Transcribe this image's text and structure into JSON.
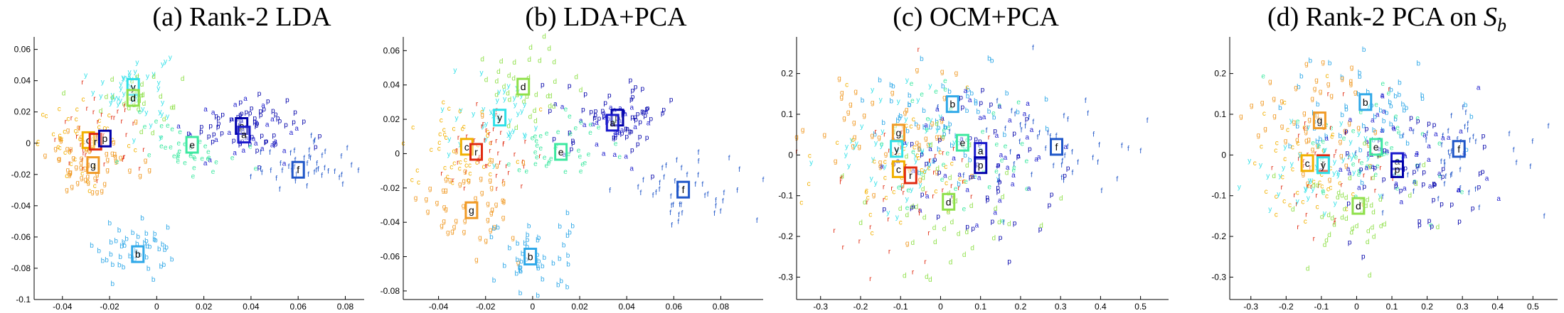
{
  "colors": {
    "a": "#1a1acc",
    "b": "#2fa8e8",
    "c": "#f2b000",
    "d": "#8fe04a",
    "e": "#3de8a0",
    "f": "#1f56c8",
    "g": "#f09a26",
    "p": "#0000aa",
    "r": "#e02a10",
    "y": "#30e0e8"
  },
  "chart_data": [
    {
      "type": "scatter",
      "title": "(a) Rank-2 LDA",
      "xlim": [
        -0.052,
        0.088
      ],
      "ylim": [
        -0.1,
        0.068
      ],
      "xticks": [
        -0.04,
        -0.02,
        0,
        0.02,
        0.04,
        0.06,
        0.08
      ],
      "xtick_labels": [
        "-0.04",
        "-0.02",
        "0",
        "0.02",
        "0.04",
        "0.06",
        "0.08"
      ],
      "yticks": [
        -0.1,
        -0.08,
        -0.06,
        -0.04,
        -0.02,
        0,
        0.02,
        0.04,
        0.06
      ],
      "ytick_labels": [
        "-0.1",
        "-0.08",
        "-0.06",
        "-0.04",
        "-0.02",
        "0",
        "0.02",
        "0.04",
        "0.06"
      ],
      "grid": false,
      "centroids": [
        {
          "label": "y",
          "x": -0.01,
          "y": 0.036
        },
        {
          "label": "d",
          "x": -0.01,
          "y": 0.029
        },
        {
          "label": "p",
          "x": 0.036,
          "y": 0.011
        },
        {
          "label": "a",
          "x": 0.037,
          "y": 0.0055
        },
        {
          "label": "c",
          "x": -0.029,
          "y": 0.002
        },
        {
          "label": "r",
          "x": -0.026,
          "y": 0.001
        },
        {
          "label": "p",
          "x": -0.022,
          "y": 0.003
        },
        {
          "label": "e",
          "x": 0.015,
          "y": -0.001
        },
        {
          "label": "g",
          "x": -0.027,
          "y": -0.014
        },
        {
          "label": "f",
          "x": 0.06,
          "y": -0.017
        },
        {
          "label": "b",
          "x": -0.008,
          "y": -0.071
        }
      ],
      "scatter_points": [
        {
          "label": "y",
          "x": -0.01,
          "y": 0.036,
          "sx": 0.008,
          "sy": 0.012,
          "n": 45
        },
        {
          "label": "d",
          "x": -0.008,
          "y": 0.028,
          "sx": 0.009,
          "sy": 0.01,
          "n": 30
        },
        {
          "label": "p",
          "x": 0.038,
          "y": 0.012,
          "sx": 0.012,
          "sy": 0.009,
          "n": 60
        },
        {
          "label": "a",
          "x": 0.036,
          "y": 0.006,
          "sx": 0.013,
          "sy": 0.01,
          "n": 30
        },
        {
          "label": "c",
          "x": -0.03,
          "y": 0.0,
          "sx": 0.01,
          "sy": 0.012,
          "n": 45
        },
        {
          "label": "r",
          "x": -0.026,
          "y": 0.003,
          "sx": 0.01,
          "sy": 0.012,
          "n": 40
        },
        {
          "label": "g",
          "x": -0.026,
          "y": -0.012,
          "sx": 0.01,
          "sy": 0.012,
          "n": 55
        },
        {
          "label": "e",
          "x": 0.012,
          "y": -0.002,
          "sx": 0.01,
          "sy": 0.008,
          "n": 40
        },
        {
          "label": "f",
          "x": 0.062,
          "y": -0.016,
          "sx": 0.011,
          "sy": 0.008,
          "n": 45
        },
        {
          "label": "b",
          "x": -0.008,
          "y": -0.07,
          "sx": 0.01,
          "sy": 0.009,
          "n": 45
        }
      ]
    },
    {
      "type": "scatter",
      "title": "(b) LDA+PCA",
      "xlim": [
        -0.055,
        0.098
      ],
      "ylim": [
        -0.085,
        0.068
      ],
      "xticks": [
        -0.04,
        -0.02,
        0,
        0.02,
        0.04,
        0.06,
        0.08
      ],
      "xtick_labels": [
        "-0.04",
        "-0.02",
        "0",
        "0.02",
        "0.04",
        "0.06",
        "0.08"
      ],
      "yticks": [
        -0.08,
        -0.06,
        -0.04,
        -0.02,
        0,
        0.02,
        0.04,
        0.06
      ],
      "ytick_labels": [
        "-0.08",
        "-0.06",
        "-0.04",
        "-0.02",
        "0",
        "0.02",
        "0.04",
        "0.06"
      ],
      "grid": false,
      "centroids": [
        {
          "label": "d",
          "x": -0.004,
          "y": 0.039
        },
        {
          "label": "y",
          "x": -0.014,
          "y": 0.021
        },
        {
          "label": "p",
          "x": 0.036,
          "y": 0.021
        },
        {
          "label": "a",
          "x": 0.034,
          "y": 0.018
        },
        {
          "label": "c",
          "x": -0.028,
          "y": 0.004
        },
        {
          "label": "r",
          "x": -0.024,
          "y": 0.001
        },
        {
          "label": "e",
          "x": 0.012,
          "y": 0.001
        },
        {
          "label": "g",
          "x": -0.026,
          "y": -0.033
        },
        {
          "label": "f",
          "x": 0.064,
          "y": -0.021
        },
        {
          "label": "b",
          "x": -0.001,
          "y": -0.06
        }
      ],
      "scatter_points": [
        {
          "label": "d",
          "x": -0.002,
          "y": 0.04,
          "sx": 0.012,
          "sy": 0.012,
          "n": 35
        },
        {
          "label": "y",
          "x": -0.014,
          "y": 0.022,
          "sx": 0.01,
          "sy": 0.012,
          "n": 40
        },
        {
          "label": "p",
          "x": 0.036,
          "y": 0.022,
          "sx": 0.012,
          "sy": 0.01,
          "n": 55
        },
        {
          "label": "a",
          "x": 0.034,
          "y": 0.017,
          "sx": 0.012,
          "sy": 0.01,
          "n": 30
        },
        {
          "label": "c",
          "x": -0.03,
          "y": 0.004,
          "sx": 0.011,
          "sy": 0.013,
          "n": 45
        },
        {
          "label": "r",
          "x": -0.024,
          "y": 0.0,
          "sx": 0.011,
          "sy": 0.014,
          "n": 45
        },
        {
          "label": "e",
          "x": 0.012,
          "y": 0.002,
          "sx": 0.012,
          "sy": 0.01,
          "n": 40
        },
        {
          "label": "g",
          "x": -0.028,
          "y": -0.03,
          "sx": 0.011,
          "sy": 0.016,
          "n": 50
        },
        {
          "label": "f",
          "x": 0.068,
          "y": -0.022,
          "sx": 0.014,
          "sy": 0.011,
          "n": 45
        },
        {
          "label": "b",
          "x": 0.0,
          "y": -0.06,
          "sx": 0.011,
          "sy": 0.01,
          "n": 45
        }
      ]
    },
    {
      "type": "scatter",
      "title": "(c) OCM+PCA",
      "xlim": [
        -0.36,
        0.57
      ],
      "ylim": [
        -0.355,
        0.29
      ],
      "xticks": [
        -0.3,
        -0.2,
        -0.1,
        0,
        0.1,
        0.2,
        0.3,
        0.4,
        0.5
      ],
      "xtick_labels": [
        "-0.3",
        "-0.2",
        "-0.1",
        "0",
        "0.1",
        "0.2",
        "0.3",
        "0.4",
        "0.5"
      ],
      "yticks": [
        -0.3,
        -0.2,
        -0.1,
        0,
        0.1,
        0.2
      ],
      "ytick_labels": [
        "-0.3",
        "-0.2",
        "-0.1",
        "0",
        "0.1",
        "0.2"
      ],
      "grid": false,
      "centroids": [
        {
          "label": "b",
          "x": 0.03,
          "y": 0.125
        },
        {
          "label": "g",
          "x": -0.105,
          "y": 0.055
        },
        {
          "label": "y",
          "x": -0.11,
          "y": 0.015
        },
        {
          "label": "e",
          "x": 0.055,
          "y": 0.03
        },
        {
          "label": "a",
          "x": 0.1,
          "y": 0.01
        },
        {
          "label": "f",
          "x": 0.29,
          "y": 0.02
        },
        {
          "label": "p",
          "x": 0.1,
          "y": -0.025
        },
        {
          "label": "c",
          "x": -0.105,
          "y": -0.035
        },
        {
          "label": "r",
          "x": -0.075,
          "y": -0.05
        },
        {
          "label": "d",
          "x": 0.02,
          "y": -0.115
        }
      ],
      "scatter_points": [
        {
          "label": "b",
          "x": 0.02,
          "y": 0.1,
          "sx": 0.11,
          "sy": 0.07,
          "n": 55
        },
        {
          "label": "g",
          "x": -0.11,
          "y": 0.04,
          "sx": 0.1,
          "sy": 0.08,
          "n": 50
        },
        {
          "label": "y",
          "x": -0.11,
          "y": 0.02,
          "sx": 0.1,
          "sy": 0.08,
          "n": 45
        },
        {
          "label": "e",
          "x": 0.06,
          "y": 0.02,
          "sx": 0.11,
          "sy": 0.09,
          "n": 45
        },
        {
          "label": "a",
          "x": 0.1,
          "y": 0.0,
          "sx": 0.11,
          "sy": 0.09,
          "n": 45
        },
        {
          "label": "f",
          "x": 0.29,
          "y": 0.02,
          "sx": 0.11,
          "sy": 0.07,
          "n": 50
        },
        {
          "label": "p",
          "x": 0.11,
          "y": -0.04,
          "sx": 0.12,
          "sy": 0.1,
          "n": 45
        },
        {
          "label": "c",
          "x": -0.11,
          "y": -0.03,
          "sx": 0.1,
          "sy": 0.08,
          "n": 40
        },
        {
          "label": "r",
          "x": -0.08,
          "y": -0.06,
          "sx": 0.11,
          "sy": 0.1,
          "n": 45
        },
        {
          "label": "d",
          "x": 0.01,
          "y": -0.12,
          "sx": 0.1,
          "sy": 0.09,
          "n": 45
        }
      ]
    },
    {
      "type": "scatter",
      "title": "(d) Rank-2 PCA on ",
      "title_sub": "S",
      "title_subscript": "b",
      "xlim": [
        -0.36,
        0.57
      ],
      "ylim": [
        -0.355,
        0.29
      ],
      "xticks": [
        -0.3,
        -0.2,
        -0.1,
        0,
        0.1,
        0.2,
        0.3,
        0.4,
        0.5
      ],
      "xtick_labels": [
        "-0.3",
        "-0.2",
        "-0.1",
        "0",
        "0.1",
        "0.2",
        "0.3",
        "0.4",
        "0.5"
      ],
      "yticks": [
        -0.3,
        -0.2,
        -0.1,
        0,
        0.1,
        0.2
      ],
      "ytick_labels": [
        "-0.3",
        "-0.2",
        "-0.1",
        "0",
        "0.1",
        "0.2"
      ],
      "grid": false,
      "centroids": [
        {
          "label": "b",
          "x": 0.025,
          "y": 0.13
        },
        {
          "label": "g",
          "x": -0.105,
          "y": 0.085
        },
        {
          "label": "e",
          "x": 0.055,
          "y": 0.02
        },
        {
          "label": "f",
          "x": 0.29,
          "y": 0.015
        },
        {
          "label": "c",
          "x": -0.14,
          "y": -0.02
        },
        {
          "label": "r",
          "x": -0.095,
          "y": -0.02
        },
        {
          "label": "y",
          "x": -0.095,
          "y": -0.025
        },
        {
          "label": "a",
          "x": 0.115,
          "y": -0.015
        },
        {
          "label": "p",
          "x": 0.115,
          "y": -0.035
        },
        {
          "label": "d",
          "x": 0.005,
          "y": -0.125
        }
      ],
      "scatter_points": [
        {
          "label": "b",
          "x": 0.03,
          "y": 0.11,
          "sx": 0.12,
          "sy": 0.07,
          "n": 55
        },
        {
          "label": "g",
          "x": -0.11,
          "y": 0.07,
          "sx": 0.1,
          "sy": 0.09,
          "n": 50
        },
        {
          "label": "e",
          "x": 0.05,
          "y": 0.02,
          "sx": 0.11,
          "sy": 0.08,
          "n": 45
        },
        {
          "label": "f",
          "x": 0.28,
          "y": 0.0,
          "sx": 0.12,
          "sy": 0.07,
          "n": 50
        },
        {
          "label": "c",
          "x": -0.14,
          "y": -0.02,
          "sx": 0.1,
          "sy": 0.08,
          "n": 40
        },
        {
          "label": "r",
          "x": -0.09,
          "y": -0.03,
          "sx": 0.1,
          "sy": 0.09,
          "n": 40
        },
        {
          "label": "y",
          "x": -0.09,
          "y": -0.01,
          "sx": 0.11,
          "sy": 0.07,
          "n": 45
        },
        {
          "label": "a",
          "x": 0.12,
          "y": -0.02,
          "sx": 0.11,
          "sy": 0.08,
          "n": 45
        },
        {
          "label": "p",
          "x": 0.12,
          "y": -0.05,
          "sx": 0.12,
          "sy": 0.09,
          "n": 45
        },
        {
          "label": "d",
          "x": 0.0,
          "y": -0.13,
          "sx": 0.1,
          "sy": 0.08,
          "n": 45
        }
      ]
    }
  ]
}
